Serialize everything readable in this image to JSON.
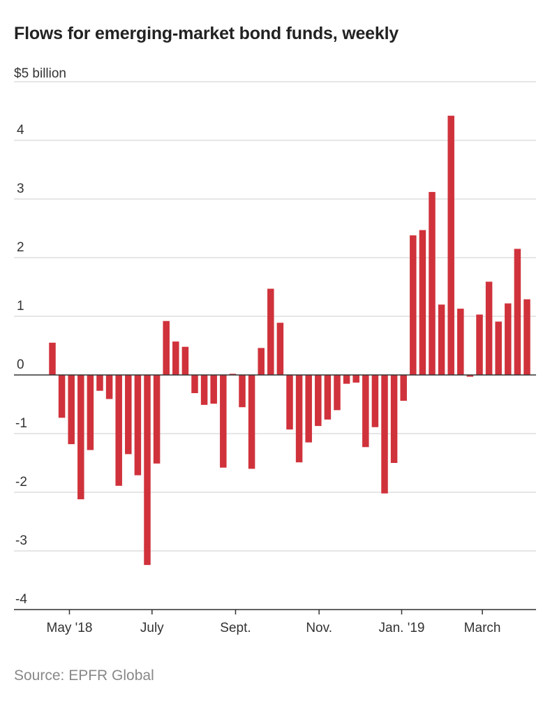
{
  "chart_data": {
    "type": "bar",
    "title": "Flows for emerging-market bond funds, weekly",
    "ylabel": "",
    "y_unit_label": "$5 billion",
    "ylim": [
      -4,
      5
    ],
    "yticks": [
      "-4",
      "-3",
      "-2",
      "-1",
      "0",
      "1",
      "2",
      "3",
      "4"
    ],
    "xticks": [
      "May '18",
      "July",
      "Sept.",
      "Nov.",
      "Jan. '19",
      "March"
    ],
    "grid": true,
    "bar_color": "#d0323b",
    "values": [
      0.55,
      -0.73,
      -1.18,
      -2.12,
      -1.28,
      -0.27,
      -0.41,
      -1.89,
      -1.35,
      -1.71,
      -3.24,
      -1.51,
      0.92,
      0.57,
      0.48,
      -0.31,
      -0.51,
      -0.49,
      -1.58,
      0.02,
      -0.55,
      -1.6,
      0.46,
      1.47,
      0.89,
      -0.93,
      -1.49,
      -1.15,
      -0.87,
      -0.76,
      -0.6,
      -0.15,
      -0.13,
      -1.23,
      -0.89,
      -2.02,
      -1.5,
      -0.44,
      2.38,
      2.47,
      3.12,
      1.2,
      4.42,
      1.13,
      -0.03,
      1.03,
      1.59,
      0.91,
      1.22,
      2.15,
      1.29
    ]
  },
  "source": "Source: EPFR Global"
}
